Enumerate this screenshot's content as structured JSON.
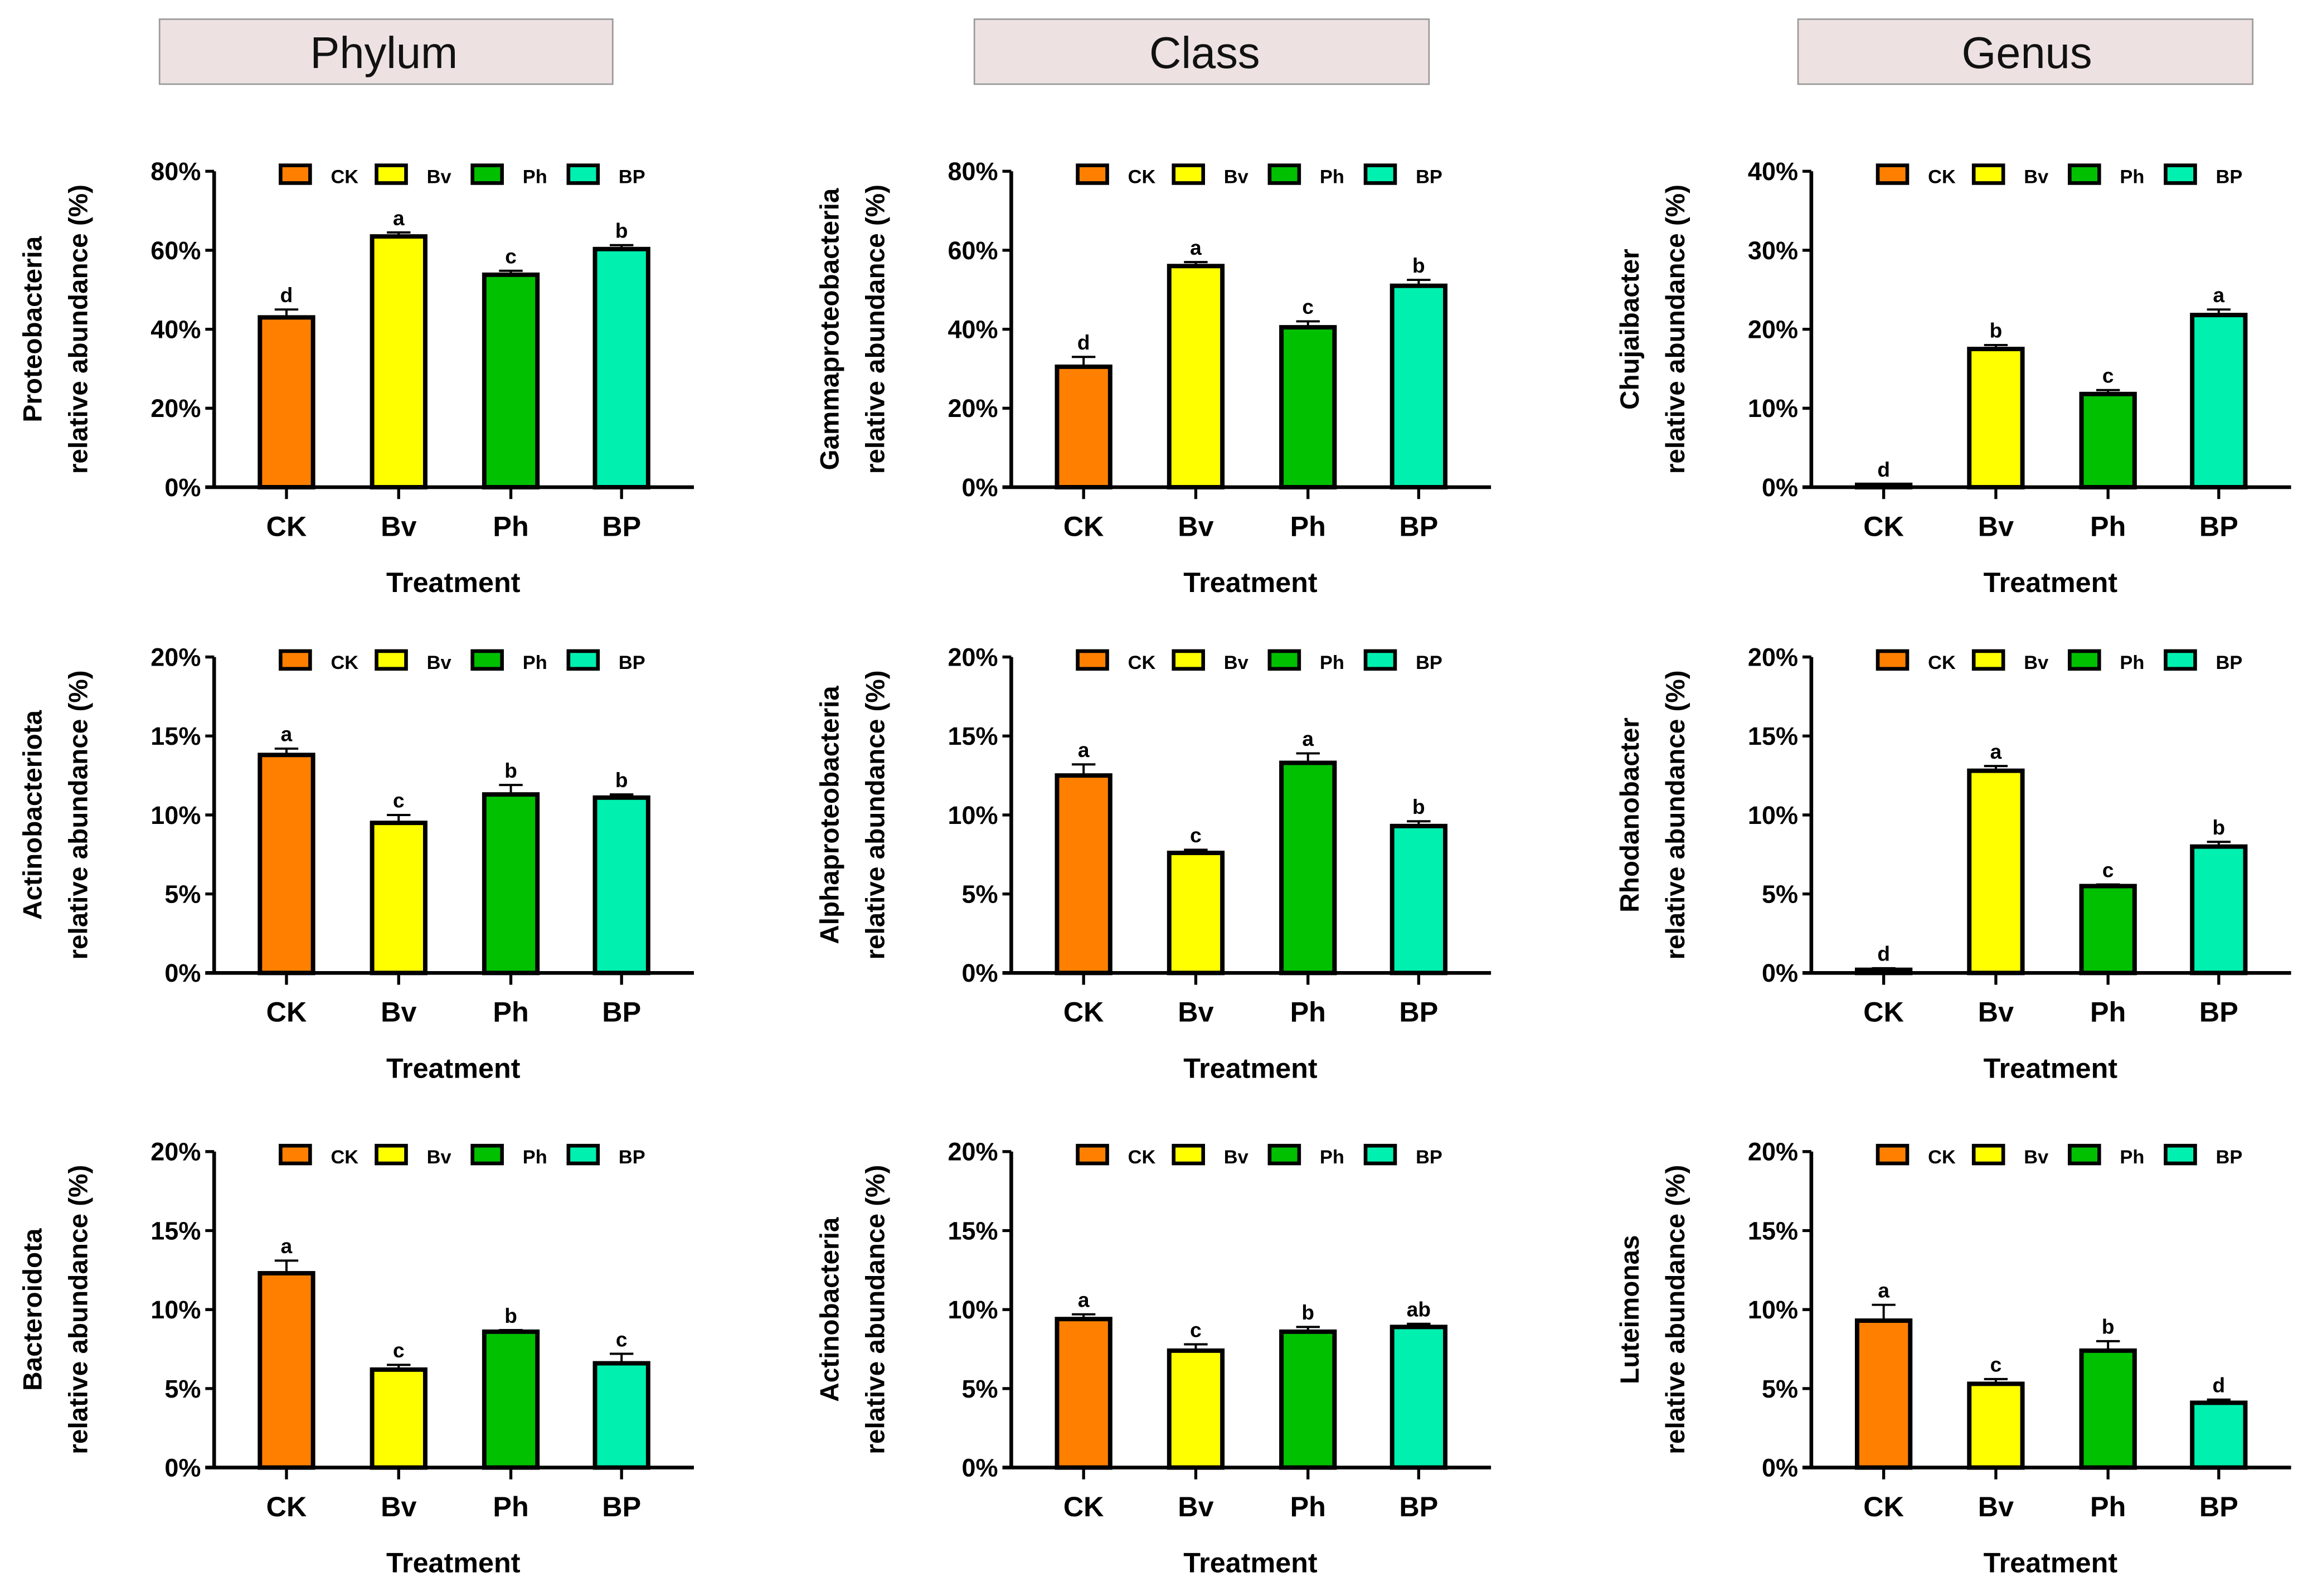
{
  "headers": [
    "Phylum",
    "Class",
    "Genus"
  ],
  "colors": {
    "CK": "#ff8000",
    "Bv": "#ffff00",
    "Ph": "#00c000",
    "BP": "#00f0b0"
  },
  "chart_data": [
    {
      "type": "bar",
      "row": 0,
      "col": 0,
      "ylabel": [
        "Proteobacteria",
        "relative abundance (%)"
      ],
      "xlabel": "Treatment",
      "categories": [
        "CK",
        "Bv",
        "Ph",
        "BP"
      ],
      "values": [
        43,
        63.5,
        53.8,
        60.3
      ],
      "errors": [
        2,
        1,
        1,
        1
      ],
      "letters": [
        "d",
        "a",
        "c",
        "b"
      ],
      "ylim": [
        0,
        80
      ],
      "yticks": [
        0,
        20,
        40,
        60,
        80
      ],
      "legend": [
        "CK",
        "Bv",
        "Ph",
        "BP"
      ]
    },
    {
      "type": "bar",
      "row": 0,
      "col": 1,
      "ylabel": [
        "Gammaproteobacteria",
        "relative abundance (%)"
      ],
      "xlabel": "Treatment",
      "categories": [
        "CK",
        "Bv",
        "Ph",
        "BP"
      ],
      "values": [
        30.5,
        56,
        40.5,
        51
      ],
      "errors": [
        2.5,
        1,
        1.5,
        1.5
      ],
      "letters": [
        "d",
        "a",
        "c",
        "b"
      ],
      "ylim": [
        0,
        80
      ],
      "yticks": [
        0,
        20,
        40,
        60,
        80
      ],
      "legend": [
        "CK",
        "Bv",
        "Ph",
        "BP"
      ]
    },
    {
      "type": "bar",
      "row": 0,
      "col": 2,
      "ylabel": [
        "Chujaibacter",
        "relative abundance (%)"
      ],
      "xlabel": "Treatment",
      "categories": [
        "CK",
        "Bv",
        "Ph",
        "BP"
      ],
      "values": [
        0.3,
        17.5,
        11.8,
        21.8
      ],
      "errors": [
        0.1,
        0.5,
        0.5,
        0.7
      ],
      "letters": [
        "d",
        "b",
        "c",
        "a"
      ],
      "ylim": [
        0,
        40
      ],
      "yticks": [
        0,
        10,
        20,
        30,
        40
      ],
      "legend": [
        "CK",
        "Bv",
        "Ph",
        "BP"
      ]
    },
    {
      "type": "bar",
      "row": 1,
      "col": 0,
      "ylabel": [
        "Actinobacteriota",
        "relative abundance (%)"
      ],
      "xlabel": "Treatment",
      "categories": [
        "CK",
        "Bv",
        "Ph",
        "BP"
      ],
      "values": [
        13.8,
        9.5,
        11.3,
        11.1
      ],
      "errors": [
        0.4,
        0.5,
        0.6,
        0.2
      ],
      "letters": [
        "a",
        "c",
        "b",
        "b"
      ],
      "ylim": [
        0,
        20
      ],
      "yticks": [
        0,
        5,
        10,
        15,
        20
      ],
      "legend": [
        "CK",
        "Bv",
        "Ph",
        "BP"
      ]
    },
    {
      "type": "bar",
      "row": 1,
      "col": 1,
      "ylabel": [
        "Alphaproteobacteria",
        "relative abundance (%)"
      ],
      "xlabel": "Treatment",
      "categories": [
        "CK",
        "Bv",
        "Ph",
        "BP"
      ],
      "values": [
        12.5,
        7.6,
        13.3,
        9.3
      ],
      "errors": [
        0.7,
        0.2,
        0.6,
        0.3
      ],
      "letters": [
        "a",
        "c",
        "a",
        "b"
      ],
      "ylim": [
        0,
        20
      ],
      "yticks": [
        0,
        5,
        10,
        15,
        20
      ],
      "legend": [
        "CK",
        "Bv",
        "Ph",
        "BP"
      ]
    },
    {
      "type": "bar",
      "row": 1,
      "col": 2,
      "ylabel": [
        "Rhodanobacter",
        "relative abundance (%)"
      ],
      "xlabel": "Treatment",
      "categories": [
        "CK",
        "Bv",
        "Ph",
        "BP"
      ],
      "values": [
        0.2,
        12.8,
        5.5,
        8
      ],
      "errors": [
        0.1,
        0.3,
        0.1,
        0.3
      ],
      "letters": [
        "d",
        "a",
        "c",
        "b"
      ],
      "ylim": [
        0,
        20
      ],
      "yticks": [
        0,
        5,
        10,
        15,
        20
      ],
      "legend": [
        "CK",
        "Bv",
        "Ph",
        "BP"
      ]
    },
    {
      "type": "bar",
      "row": 2,
      "col": 0,
      "ylabel": [
        "Bacteroidota",
        "relative abundance (%)"
      ],
      "xlabel": "Treatment",
      "categories": [
        "CK",
        "Bv",
        "Ph",
        "BP"
      ],
      "values": [
        12.3,
        6.2,
        8.6,
        6.6
      ],
      "errors": [
        0.8,
        0.3,
        0.1,
        0.6
      ],
      "letters": [
        "a",
        "c",
        "b",
        "c"
      ],
      "ylim": [
        0,
        20
      ],
      "yticks": [
        0,
        5,
        10,
        15,
        20
      ],
      "legend": [
        "CK",
        "Bv",
        "Ph",
        "BP"
      ]
    },
    {
      "type": "bar",
      "row": 2,
      "col": 1,
      "ylabel": [
        "Actinobacteria",
        "relative abundance (%)"
      ],
      "xlabel": "Treatment",
      "categories": [
        "CK",
        "Bv",
        "Ph",
        "BP"
      ],
      "values": [
        9.4,
        7.4,
        8.6,
        8.9
      ],
      "errors": [
        0.3,
        0.4,
        0.3,
        0.2
      ],
      "letters": [
        "a",
        "c",
        "b",
        "ab"
      ],
      "ylim": [
        0,
        20
      ],
      "yticks": [
        0,
        5,
        10,
        15,
        20
      ],
      "legend": [
        "CK",
        "Bv",
        "Ph",
        "BP"
      ]
    },
    {
      "type": "bar",
      "row": 2,
      "col": 2,
      "ylabel": [
        "Luteimonas",
        "relative abundance (%)"
      ],
      "xlabel": "Treatment",
      "categories": [
        "CK",
        "Bv",
        "Ph",
        "BP"
      ],
      "values": [
        9.3,
        5.3,
        7.4,
        4.1
      ],
      "errors": [
        1,
        0.3,
        0.6,
        0.2
      ],
      "letters": [
        "a",
        "c",
        "b",
        "d"
      ],
      "ylim": [
        0,
        20
      ],
      "yticks": [
        0,
        5,
        10,
        15,
        20
      ],
      "legend": [
        "CK",
        "Bv",
        "Ph",
        "BP"
      ]
    }
  ]
}
